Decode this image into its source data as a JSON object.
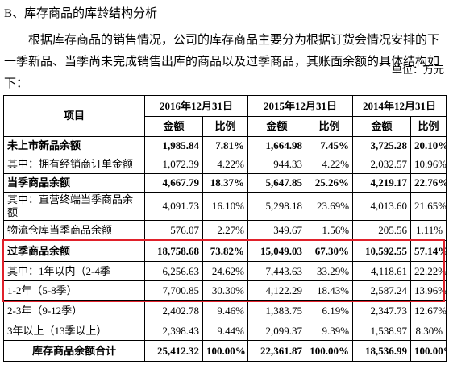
{
  "header": {
    "section_title": "B、库存商品的库龄结构分析",
    "paragraph": "根据库存商品的销售情况，公司的库存商品主要分为根据订货会情况安排的下一季新品、当季尚未完成销售出库的商品以及过季商品，其账面余额的具体结构如下："
  },
  "table": {
    "unit": "单位：万元",
    "item_header": "项目",
    "years": [
      "2016年12月31日",
      "2015年12月31日",
      "2014年12月31日"
    ],
    "subheaders": [
      "金额",
      "比例",
      "金额",
      "比例",
      "金额",
      "比例"
    ],
    "rows": [
      {
        "label": "未上市新品余额",
        "bold": true,
        "values": [
          "1,985.84",
          "7.81%",
          "1,664.98",
          "7.45%",
          "3,725.28",
          "20.10%"
        ]
      },
      {
        "label": "其中：拥有经销商订单金额",
        "bold": false,
        "values": [
          "1,072.39",
          "4.22%",
          "944.33",
          "4.22%",
          "2,032.57",
          "10.96%"
        ]
      },
      {
        "label": "当季商品余额",
        "bold": true,
        "values": [
          "4,667.79",
          "18.37%",
          "5,647.85",
          "25.26%",
          "4,219.17",
          "22.76%"
        ]
      },
      {
        "label": "其中：直营终端当季商品余额",
        "bold": false,
        "values": [
          "4,091.73",
          "16.10%",
          "5,298.18",
          "23.69%",
          "4,013.60",
          "21.65%"
        ]
      },
      {
        "label": "物流仓库当季商品余额",
        "bold": false,
        "values": [
          "576.07",
          "2.27%",
          "349.67",
          "1.56%",
          "205.56",
          "1.11%"
        ]
      },
      {
        "label": "过季商品余额",
        "bold": true,
        "values": [
          "18,758.68",
          "73.82%",
          "15,049.03",
          "67.30%",
          "10,592.55",
          "57.14%"
        ]
      },
      {
        "label": "其中：1年以内（2-4季",
        "bold": false,
        "values": [
          "6,256.63",
          "24.62%",
          "7,443.63",
          "33.29%",
          "4,118.61",
          "22.22%"
        ]
      },
      {
        "label": "1-2年（5-8季）",
        "bold": false,
        "values": [
          "7,700.85",
          "30.30%",
          "4,122.29",
          "18.43%",
          "2,587.24",
          "13.96%"
        ]
      },
      {
        "label": "2-3年（9-12季）",
        "bold": false,
        "values": [
          "2,402.78",
          "9.46%",
          "1,383.75",
          "6.19%",
          "2,347.73",
          "12.67%"
        ]
      },
      {
        "label": "3年以上（13季以上）",
        "bold": false,
        "values": [
          "2,398.43",
          "9.44%",
          "2,099.37",
          "9.39%",
          "1,538.97",
          "8.30%"
        ]
      },
      {
        "label": "库存商品余额合计",
        "bold": true,
        "values": [
          "25,412.32",
          "100.00%",
          "22,361.87",
          "100.00%",
          "18,536.99",
          "100.00%"
        ]
      }
    ]
  }
}
